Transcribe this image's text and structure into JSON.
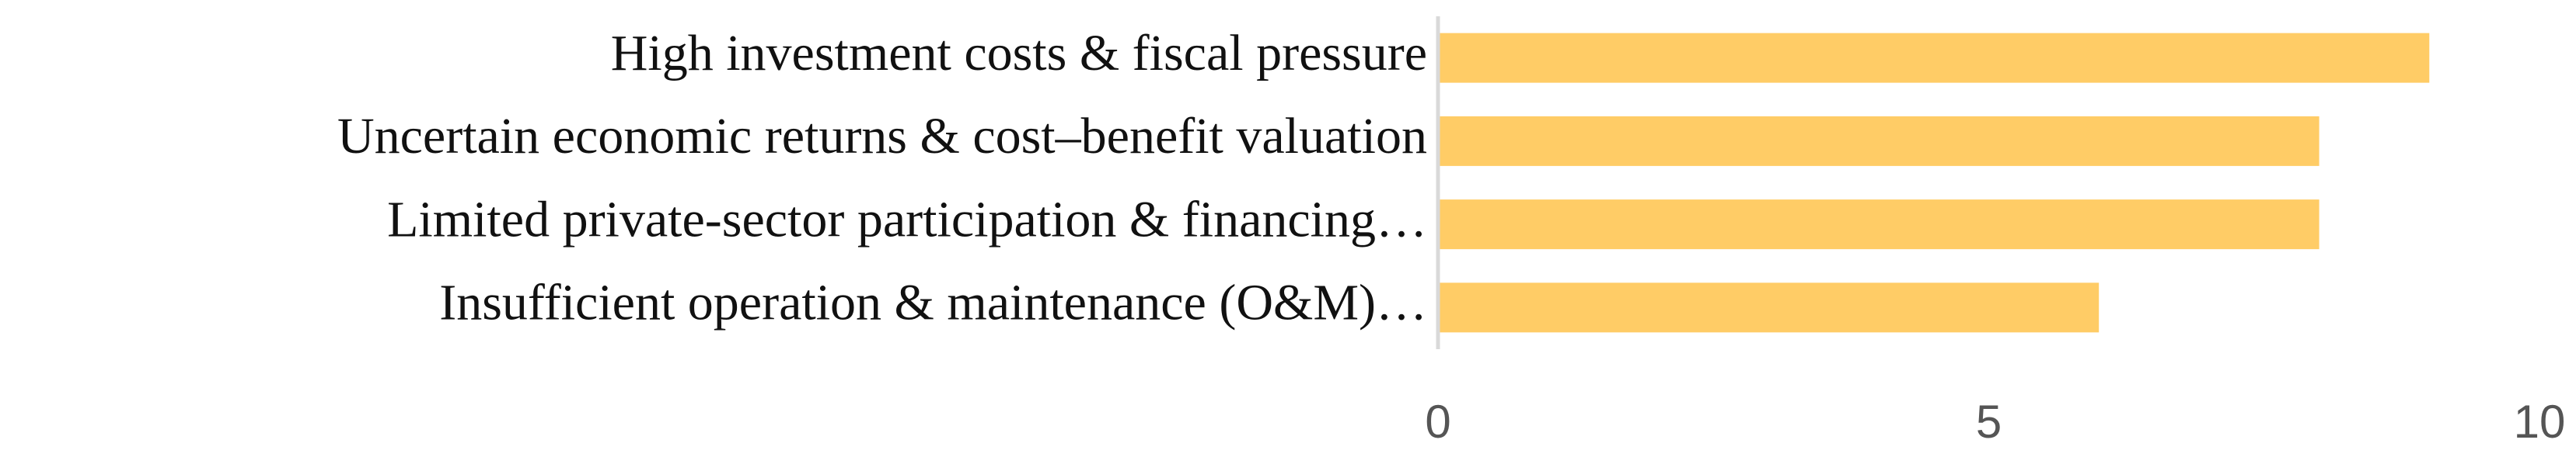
{
  "chart_data": {
    "type": "barh",
    "categories": [
      "High investment costs & fiscal pressure",
      "Uncertain economic returns & cost–benefit valuation",
      "Limited private-sector participation & financing…",
      "Insufficient operation & maintenance (O&M)…"
    ],
    "values": [
      9,
      8,
      8,
      6
    ],
    "color": "#FFCC66",
    "xlim": [
      0,
      10
    ],
    "xticks": [
      0,
      5,
      10
    ],
    "grid": false
  }
}
